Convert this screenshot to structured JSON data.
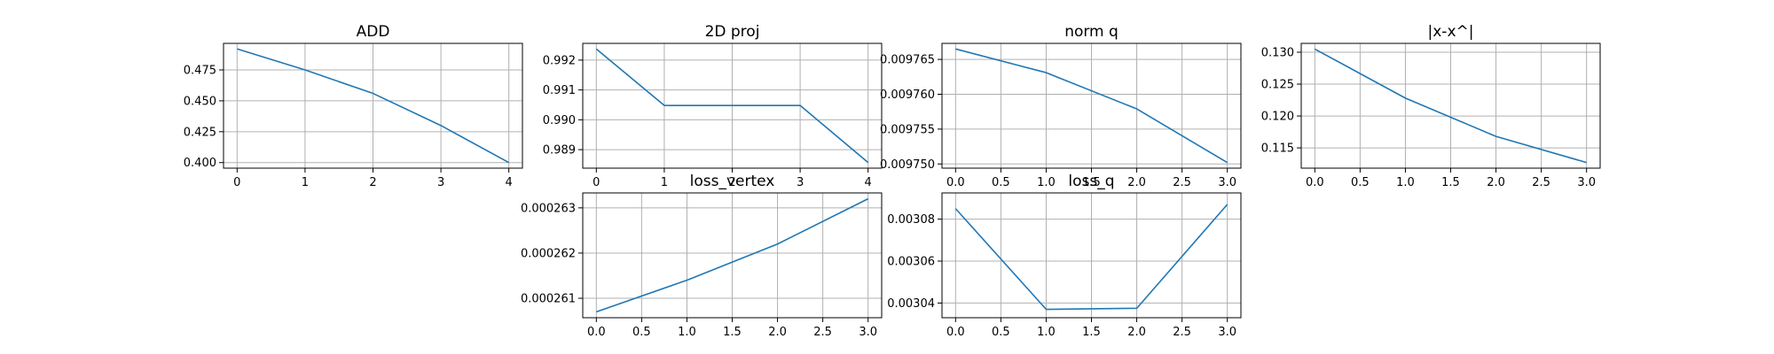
{
  "chart_data": [
    {
      "type": "line",
      "title": "ADD",
      "x": [
        0,
        1,
        2,
        3,
        4
      ],
      "values": [
        0.492,
        0.475,
        0.456,
        0.43,
        0.4
      ],
      "xlim": [
        -0.2,
        4.2
      ],
      "ylim": [
        0.3955,
        0.4965
      ],
      "xticks": [
        0,
        1,
        2,
        3,
        4
      ],
      "xtick_labels": [
        "0",
        "1",
        "2",
        "3",
        "4"
      ],
      "yticks": [
        0.4,
        0.425,
        0.45,
        0.475
      ],
      "ytick_labels": [
        "0.400",
        "0.425",
        "0.450",
        "0.475"
      ],
      "grid": true
    },
    {
      "type": "line",
      "title": "2D proj",
      "x": [
        0,
        1,
        2,
        3,
        4
      ],
      "values": [
        0.99237,
        0.99048,
        0.99048,
        0.99048,
        0.98857
      ],
      "xlim": [
        -0.2,
        4.2
      ],
      "ylim": [
        0.98838,
        0.99256
      ],
      "xticks": [
        0,
        1,
        2,
        3,
        4
      ],
      "xtick_labels": [
        "0",
        "1",
        "2",
        "3",
        "4"
      ],
      "yticks": [
        0.989,
        0.99,
        0.991,
        0.992
      ],
      "ytick_labels": [
        "0.989",
        "0.990",
        "0.991",
        "0.992"
      ],
      "grid": true
    },
    {
      "type": "line",
      "title": "norm q",
      "x": [
        0,
        1,
        2,
        3
      ],
      "values": [
        0.0097665,
        0.0097631,
        0.0097579,
        0.0097502
      ],
      "xlim": [
        -0.15,
        3.15
      ],
      "ylim": [
        0.0097494,
        0.0097673
      ],
      "xticks": [
        0.0,
        0.5,
        1.0,
        1.5,
        2.0,
        2.5,
        3.0
      ],
      "xtick_labels": [
        "0.0",
        "0.5",
        "1.0",
        "1.5",
        "2.0",
        "2.5",
        "3.0"
      ],
      "yticks": [
        0.00975,
        0.009755,
        0.00976,
        0.009765
      ],
      "ytick_labels": [
        "0.009750",
        "0.009755",
        "0.009760",
        "0.009765"
      ],
      "grid": true
    },
    {
      "type": "line",
      "title": "|x-x^|",
      "x": [
        0,
        1,
        2,
        3
      ],
      "values": [
        0.1305,
        0.1228,
        0.1168,
        0.1127
      ],
      "xlim": [
        -0.15,
        3.15
      ],
      "ylim": [
        0.11182,
        0.13139
      ],
      "xticks": [
        0.0,
        0.5,
        1.0,
        1.5,
        2.0,
        2.5,
        3.0
      ],
      "xtick_labels": [
        "0.0",
        "0.5",
        "1.0",
        "1.5",
        "2.0",
        "2.5",
        "3.0"
      ],
      "yticks": [
        0.115,
        0.12,
        0.125,
        0.13
      ],
      "ytick_labels": [
        "0.115",
        "0.120",
        "0.125",
        "0.130"
      ],
      "grid": true
    },
    {
      "type": "line",
      "title": "loss_vertex",
      "x": [
        0,
        1,
        2,
        3
      ],
      "values": [
        0.0002607,
        0.0002614,
        0.0002622,
        0.0002632
      ],
      "xlim": [
        -0.15,
        3.15
      ],
      "ylim": [
        0.00026057,
        0.00026333
      ],
      "xticks": [
        0.0,
        0.5,
        1.0,
        1.5,
        2.0,
        2.5,
        3.0
      ],
      "xtick_labels": [
        "0.0",
        "0.5",
        "1.0",
        "1.5",
        "2.0",
        "2.5",
        "3.0"
      ],
      "yticks": [
        0.000261,
        0.000262,
        0.000263
      ],
      "ytick_labels": [
        "0.000261",
        "0.000262",
        "0.000263"
      ],
      "grid": true
    },
    {
      "type": "line",
      "title": "loss_q",
      "x": [
        0,
        1,
        2,
        3
      ],
      "values": [
        0.003085,
        0.003037,
        0.0030375,
        0.003087
      ],
      "xlim": [
        -0.15,
        3.15
      ],
      "ylim": [
        0.003033,
        0.0030925
      ],
      "xticks": [
        0.0,
        0.5,
        1.0,
        1.5,
        2.0,
        2.5,
        3.0
      ],
      "xtick_labels": [
        "0.0",
        "0.5",
        "1.0",
        "1.5",
        "2.0",
        "2.5",
        "3.0"
      ],
      "yticks": [
        0.00304,
        0.00306,
        0.00308
      ],
      "ytick_labels": [
        "0.00304",
        "0.00306",
        "0.00308"
      ],
      "grid": true
    }
  ],
  "colors": {
    "series": "#1f77b4",
    "grid": "#b0b0b0",
    "frame": "#000000"
  }
}
